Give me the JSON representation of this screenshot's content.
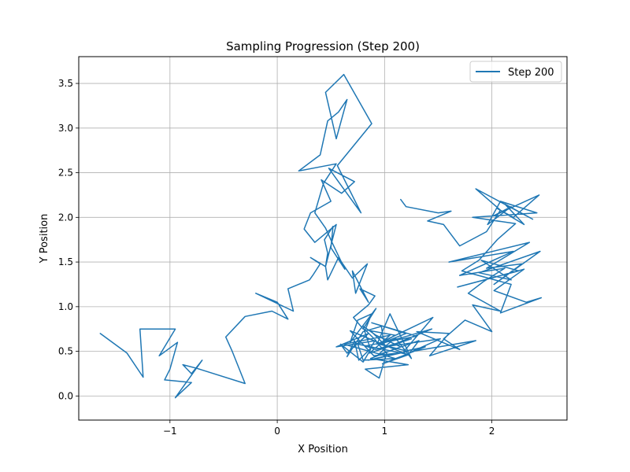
{
  "chart_data": {
    "type": "line",
    "title": "Sampling Progression (Step 200)",
    "xlabel": "X Position",
    "ylabel": "Y Position",
    "xlim": [
      -1.85,
      2.7
    ],
    "ylim": [
      -0.27,
      3.8
    ],
    "xticks": [
      -1,
      0,
      1,
      2
    ],
    "xtick_labels": [
      "−1",
      "0",
      "1",
      "2"
    ],
    "yticks": [
      0.0,
      0.5,
      1.0,
      1.5,
      2.0,
      2.5,
      3.0,
      3.5
    ],
    "ytick_labels": [
      "0.0",
      "0.5",
      "1.0",
      "1.5",
      "2.0",
      "2.5",
      "3.0",
      "3.5"
    ],
    "grid": true,
    "legend_position": "upper right",
    "line_color": "#1f77b4",
    "series": [
      {
        "name": "Step 200",
        "x": [
          -1.65,
          -1.4,
          -1.25,
          -1.28,
          -1.22,
          -0.95,
          -1.1,
          -0.93,
          -1.0,
          -1.05,
          -0.8,
          -0.95,
          -0.7,
          -0.8,
          -0.88,
          -0.75,
          -0.3,
          -0.42,
          -0.48,
          -0.3,
          -0.05,
          0.1,
          0.0,
          -0.2,
          0.15,
          0.1,
          0.3,
          0.33,
          0.4,
          0.31,
          0.45,
          0.55,
          0.35,
          0.25,
          0.31,
          0.5,
          0.41,
          0.6,
          0.72,
          0.48,
          0.78,
          0.56,
          0.88,
          0.62,
          0.45,
          0.55,
          0.65,
          0.57,
          0.47,
          0.4,
          0.2,
          0.55,
          0.43,
          0.35,
          0.45,
          0.51,
          0.63,
          0.5,
          0.52,
          0.44,
          0.47,
          0.45,
          0.47,
          0.57,
          0.7,
          0.84,
          0.73,
          0.7,
          0.85,
          0.77,
          0.91,
          0.85,
          0.71,
          0.8,
          0.92,
          0.68,
          0.75,
          0.88,
          0.82,
          0.92,
          0.55,
          0.85,
          0.65,
          0.59,
          0.8,
          0.87,
          0.8,
          0.92,
          1.15,
          0.87,
          1.22,
          0.82,
          0.95,
          1.02,
          0.91,
          0.86,
          0.76,
          0.72,
          0.65,
          0.8,
          0.97,
          1.0,
          1.1,
          1.25,
          1.05,
          0.93,
          1.45,
          1.18,
          1.38,
          0.98,
          1.22,
          1.32,
          0.94,
          1.02,
          0.87,
          1.1,
          0.95,
          1.22,
          0.85,
          1.12,
          0.9,
          0.68,
          1.2,
          0.75,
          0.8,
          1.1,
          0.62,
          1.05,
          0.86,
          1.25,
          0.92,
          0.82,
          1.3,
          0.88,
          1.2,
          0.95,
          1.44,
          1.05,
          1.52,
          1.26,
          1.85,
          1.42,
          1.6,
          1.3,
          1.7,
          1.55,
          1.75,
          2.0,
          1.82,
          2.08,
          1.78,
          1.92,
          2.12,
          1.7,
          2.2,
          1.6,
          2.35,
          1.95,
          2.28,
          2.02,
          2.45,
          1.88,
          2.18,
          1.9,
          2.25,
          1.68,
          2.3,
          2.02,
          2.32,
          2.46,
          2.08,
          2.18,
          1.72,
          1.88,
          2.05,
          2.22,
          1.82,
          2.42,
          2.08,
          1.96,
          2.18,
          2.02,
          2.44,
          2.2,
          2.05,
          2.3,
          2.12,
          2.38,
          1.85,
          2.08,
          1.95,
          1.7,
          1.55,
          1.4,
          1.62,
          1.5,
          1.2,
          1.15
        ],
        "y": [
          0.7,
          0.48,
          0.21,
          0.75,
          0.75,
          0.75,
          0.45,
          0.6,
          0.3,
          0.18,
          0.15,
          -0.02,
          0.4,
          0.25,
          0.35,
          0.31,
          0.14,
          0.5,
          0.66,
          0.89,
          0.95,
          0.86,
          1.05,
          1.15,
          0.95,
          1.2,
          1.3,
          1.35,
          1.48,
          1.55,
          1.45,
          1.92,
          1.72,
          1.87,
          2.05,
          2.18,
          2.42,
          2.27,
          2.4,
          2.55,
          2.05,
          2.58,
          3.05,
          3.6,
          3.4,
          2.88,
          3.32,
          3.18,
          3.08,
          2.7,
          2.52,
          2.6,
          2.38,
          2.05,
          1.88,
          1.72,
          1.42,
          1.66,
          1.9,
          1.75,
          1.6,
          1.45,
          1.3,
          1.55,
          1.32,
          1.48,
          1.15,
          1.4,
          1.05,
          1.2,
          1.12,
          1.02,
          0.88,
          0.75,
          0.98,
          0.6,
          0.85,
          0.92,
          0.74,
          0.62,
          0.55,
          0.7,
          0.48,
          0.58,
          0.38,
          0.52,
          0.78,
          0.68,
          0.55,
          0.42,
          0.35,
          0.3,
          0.2,
          0.48,
          0.62,
          0.52,
          0.4,
          0.62,
          0.44,
          0.72,
          0.78,
          0.55,
          0.65,
          0.42,
          0.92,
          0.58,
          0.88,
          0.5,
          0.55,
          0.36,
          0.46,
          0.62,
          0.46,
          0.55,
          0.73,
          0.68,
          0.58,
          0.5,
          0.4,
          0.48,
          0.45,
          0.73,
          0.47,
          0.58,
          0.4,
          0.42,
          0.58,
          0.68,
          0.48,
          0.64,
          0.52,
          0.56,
          0.67,
          0.82,
          0.7,
          0.58,
          0.75,
          0.56,
          0.64,
          0.5,
          0.62,
          0.45,
          0.7,
          0.72,
          0.52,
          0.64,
          0.85,
          0.72,
          1.02,
          0.95,
          1.15,
          1.28,
          1.43,
          1.35,
          1.62,
          1.5,
          1.72,
          1.43,
          1.48,
          1.25,
          1.62,
          1.38,
          1.3,
          1.52,
          1.4,
          1.22,
          1.42,
          1.18,
          1.05,
          1.1,
          0.93,
          1.25,
          1.4,
          1.52,
          1.75,
          1.93,
          2.0,
          2.05,
          2.18,
          1.92,
          2.12,
          2.02,
          2.25,
          2.0,
          2.1,
          1.92,
          2.15,
          1.98,
          2.32,
          2.08,
          1.84,
          1.68,
          1.92,
          1.96,
          2.07,
          2.05,
          2.12,
          2.2
        ]
      }
    ]
  }
}
